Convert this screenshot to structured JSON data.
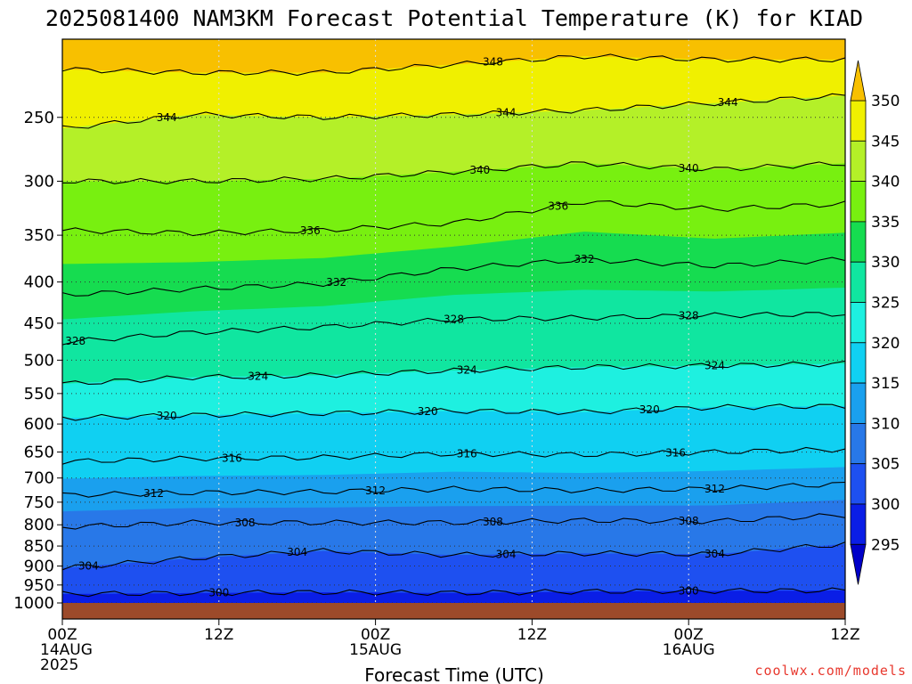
{
  "title": "2025081400 NAM3KM Forecast Potential Temperature (K) for KIAD",
  "credit": "coolwx.com/models",
  "colors": {
    "ground": "#9c4a2a",
    "levels": [
      {
        "min": 290,
        "max": 295,
        "color": "#0000c8"
      },
      {
        "min": 295,
        "max": 300,
        "color": "#0a1ee6"
      },
      {
        "min": 300,
        "max": 305,
        "color": "#1e50f0"
      },
      {
        "min": 305,
        "max": 310,
        "color": "#2878e8"
      },
      {
        "min": 310,
        "max": 315,
        "color": "#1aa0ee"
      },
      {
        "min": 315,
        "max": 320,
        "color": "#10d0f2"
      },
      {
        "min": 320,
        "max": 325,
        "color": "#1ef0e0"
      },
      {
        "min": 325,
        "max": 330,
        "color": "#10e6a0"
      },
      {
        "min": 330,
        "max": 335,
        "color": "#16dc50"
      },
      {
        "min": 335,
        "max": 340,
        "color": "#78f010"
      },
      {
        "min": 340,
        "max": 345,
        "color": "#b4f028"
      },
      {
        "min": 345,
        "max": 350,
        "color": "#f0f000"
      },
      {
        "min": 350,
        "max": 355,
        "color": "#f8c000"
      }
    ]
  },
  "chart_data": {
    "type": "heatmap",
    "subtype": "time-height contour",
    "title": "2025081400 NAM3KM Forecast Potential Temperature (K) for KIAD",
    "xlabel": "Forecast Time (UTC)",
    "ylabel": "",
    "x_range_hours": [
      0,
      60
    ],
    "y_range_hPa": [
      1000,
      200
    ],
    "y_scale": "log",
    "x_ticks": [
      {
        "hour": 0,
        "labels": [
          "00Z",
          "14AUG",
          "2025"
        ]
      },
      {
        "hour": 12,
        "labels": [
          "12Z"
        ]
      },
      {
        "hour": 24,
        "labels": [
          "00Z",
          "15AUG"
        ]
      },
      {
        "hour": 36,
        "labels": [
          "12Z"
        ]
      },
      {
        "hour": 48,
        "labels": [
          "00Z",
          "16AUG"
        ]
      },
      {
        "hour": 60,
        "labels": [
          "12Z"
        ]
      }
    ],
    "y_ticks": [
      "250",
      "300",
      "350",
      "400",
      "450",
      "500",
      "550",
      "600",
      "650",
      "700",
      "750",
      "800",
      "850",
      "900",
      "950",
      "1000"
    ],
    "grid": true,
    "colorbar": {
      "ticks": [
        "295",
        "300",
        "305",
        "310",
        "315",
        "320",
        "325",
        "330",
        "335",
        "340",
        "345",
        "350"
      ],
      "extend": "both"
    },
    "contour_interval_K": 4,
    "contours": [
      {
        "value": 300,
        "pressure": [
          975,
          972,
          970,
          972,
          968,
          966,
          965
        ]
      },
      {
        "value": 304,
        "pressure": [
          905,
          880,
          862,
          872,
          868,
          870,
          845
        ]
      },
      {
        "value": 308,
        "pressure": [
          805,
          795,
          795,
          795,
          790,
          792,
          778
        ]
      },
      {
        "value": 312,
        "pressure": [
          735,
          730,
          728,
          722,
          725,
          722,
          712
        ]
      },
      {
        "value": 316,
        "pressure": [
          668,
          662,
          660,
          653,
          655,
          650,
          645
        ]
      },
      {
        "value": 320,
        "pressure": [
          590,
          585,
          582,
          578,
          580,
          572,
          570
        ]
      },
      {
        "value": 324,
        "pressure": [
          535,
          525,
          522,
          515,
          510,
          508,
          505
        ]
      },
      {
        "value": 328,
        "pressure": [
          475,
          462,
          455,
          445,
          443,
          440,
          438
        ]
      },
      {
        "value": 332,
        "pressure": [
          415,
          408,
          402,
          385,
          375,
          382,
          375
        ]
      },
      {
        "value": 336,
        "pressure": [
          345,
          348,
          345,
          338,
          318,
          325,
          320
        ]
      },
      {
        "value": 340,
        "pressure": [
          300,
          300,
          298,
          292,
          285,
          290,
          285
        ]
      },
      {
        "value": 344,
        "pressure": [
          258,
          248,
          250,
          248,
          245,
          240,
          235
        ]
      },
      {
        "value": 348,
        "pressure": [
          218,
          220,
          220,
          215,
          210,
          212,
          212
        ]
      }
    ],
    "contour_hours": [
      0,
      10,
      20,
      30,
      40,
      50,
      60
    ],
    "contour_labels": [
      {
        "text": "348",
        "hour": 33
      },
      {
        "text": "344",
        "hour": 8
      },
      {
        "text": "344",
        "hour": 34
      },
      {
        "text": "344",
        "hour": 51
      },
      {
        "text": "340",
        "hour": 32
      },
      {
        "text": "340",
        "hour": 48
      },
      {
        "text": "336",
        "hour": 19
      },
      {
        "text": "336",
        "hour": 38
      },
      {
        "text": "332",
        "hour": 21
      },
      {
        "text": "332",
        "hour": 40
      },
      {
        "text": "328",
        "hour": 1
      },
      {
        "text": "328",
        "hour": 30
      },
      {
        "text": "328",
        "hour": 48
      },
      {
        "text": "324",
        "hour": 15
      },
      {
        "text": "324",
        "hour": 31
      },
      {
        "text": "324",
        "hour": 50
      },
      {
        "text": "320",
        "hour": 8
      },
      {
        "text": "320",
        "hour": 28
      },
      {
        "text": "320",
        "hour": 45
      },
      {
        "text": "316",
        "hour": 13
      },
      {
        "text": "316",
        "hour": 31
      },
      {
        "text": "316",
        "hour": 47
      },
      {
        "text": "312",
        "hour": 7
      },
      {
        "text": "312",
        "hour": 24
      },
      {
        "text": "312",
        "hour": 50
      },
      {
        "text": "308",
        "hour": 14
      },
      {
        "text": "308",
        "hour": 33
      },
      {
        "text": "308",
        "hour": 48
      },
      {
        "text": "304",
        "hour": 2
      },
      {
        "text": "304",
        "hour": 18
      },
      {
        "text": "304",
        "hour": 34
      },
      {
        "text": "304",
        "hour": 50
      },
      {
        "text": "300",
        "hour": 12
      },
      {
        "text": "300",
        "hour": 48
      }
    ]
  }
}
